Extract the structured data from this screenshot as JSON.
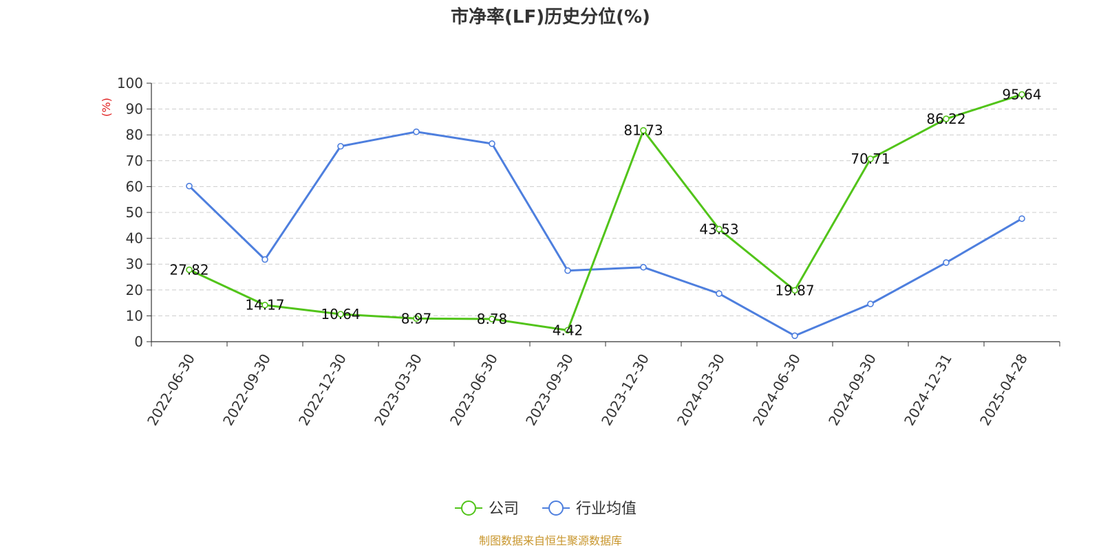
{
  "chart_data": {
    "type": "line",
    "title": "市净率(LF)历史分位(%)",
    "ylabel": "(%)",
    "xlabel": "",
    "categories": [
      "2022-06-30",
      "2022-09-30",
      "2022-12-30",
      "2023-03-30",
      "2023-06-30",
      "2023-09-30",
      "2023-12-30",
      "2024-03-30",
      "2024-06-30",
      "2024-09-30",
      "2024-12-31",
      "2025-04-28"
    ],
    "ylim": [
      0,
      100
    ],
    "yticks": [
      0,
      10,
      20,
      30,
      40,
      50,
      60,
      70,
      80,
      90,
      100
    ],
    "grid": true,
    "legend_position": "bottom-center",
    "series": [
      {
        "name": "公司",
        "color": "#52c41a",
        "values": [
          27.82,
          14.17,
          10.64,
          8.97,
          8.78,
          4.42,
          81.73,
          43.53,
          19.87,
          70.71,
          86.22,
          95.64
        ],
        "data_labels": [
          "27.82",
          "14.17",
          "10.64",
          "8.97",
          "8.78",
          "4.42",
          "81.73",
          "43.53",
          "19.87",
          "70.71",
          "86.22",
          "95.64"
        ]
      },
      {
        "name": "行业均值",
        "color": "#4e7fde",
        "values": [
          60.2,
          31.8,
          75.6,
          81.2,
          76.6,
          27.5,
          28.8,
          18.6,
          2.3,
          14.6,
          30.6,
          47.6
        ]
      }
    ],
    "source_note": "制图数据来自恒生聚源数据库",
    "source_color": "#c8962d",
    "unit_color": "#e02020"
  }
}
